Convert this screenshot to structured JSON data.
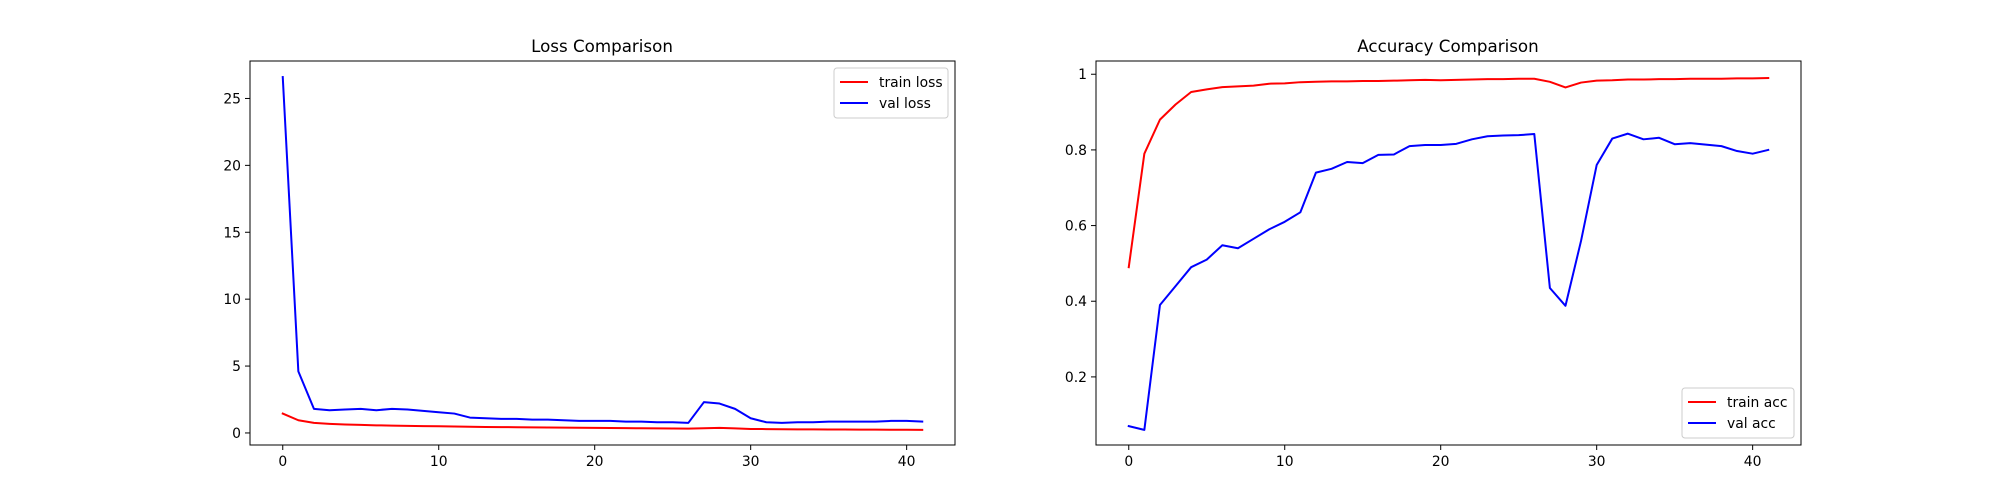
{
  "figure": {
    "background": "#ffffff"
  },
  "chart_data": [
    {
      "type": "line",
      "title": "Loss Comparison",
      "xlabel": "",
      "ylabel": "",
      "xlim": [
        -2.1,
        43.1
      ],
      "ylim": [
        -0.9,
        27.8
      ],
      "xticks": [
        0,
        10,
        20,
        30,
        40
      ],
      "yticks": [
        0,
        5,
        10,
        15,
        20,
        25
      ],
      "grid": false,
      "legend_position": "top-right",
      "x": [
        0,
        1,
        2,
        3,
        4,
        5,
        6,
        7,
        8,
        9,
        10,
        11,
        12,
        13,
        14,
        15,
        16,
        17,
        18,
        19,
        20,
        21,
        22,
        23,
        24,
        25,
        26,
        27,
        28,
        29,
        30,
        31,
        32,
        33,
        34,
        35,
        36,
        37,
        38,
        39,
        40,
        41
      ],
      "series": [
        {
          "name": "train loss",
          "color": "#ff0000",
          "values": [
            1.45,
            0.95,
            0.75,
            0.68,
            0.63,
            0.6,
            0.57,
            0.55,
            0.53,
            0.51,
            0.5,
            0.48,
            0.46,
            0.45,
            0.44,
            0.43,
            0.42,
            0.41,
            0.4,
            0.39,
            0.38,
            0.37,
            0.36,
            0.35,
            0.34,
            0.33,
            0.32,
            0.35,
            0.38,
            0.34,
            0.3,
            0.29,
            0.28,
            0.27,
            0.27,
            0.26,
            0.26,
            0.25,
            0.25,
            0.24,
            0.24,
            0.23
          ]
        },
        {
          "name": "val loss",
          "color": "#0000ff",
          "values": [
            26.6,
            4.6,
            1.8,
            1.7,
            1.75,
            1.8,
            1.7,
            1.8,
            1.75,
            1.65,
            1.55,
            1.45,
            1.15,
            1.1,
            1.05,
            1.05,
            1.0,
            1.0,
            0.95,
            0.9,
            0.9,
            0.9,
            0.85,
            0.85,
            0.8,
            0.8,
            0.75,
            2.3,
            2.2,
            1.8,
            1.1,
            0.8,
            0.75,
            0.8,
            0.8,
            0.85,
            0.85,
            0.85,
            0.85,
            0.9,
            0.9,
            0.85
          ]
        }
      ]
    },
    {
      "type": "line",
      "title": "Accuracy Comparison",
      "xlabel": "",
      "ylabel": "",
      "xlim": [
        -2.1,
        43.1
      ],
      "ylim": [
        0.02,
        1.035
      ],
      "xticks": [
        0,
        10,
        20,
        30,
        40
      ],
      "yticks": [
        0.2,
        0.4,
        0.6,
        0.8,
        1.0
      ],
      "grid": false,
      "legend_position": "lower-right",
      "x": [
        0,
        1,
        2,
        3,
        4,
        5,
        6,
        7,
        8,
        9,
        10,
        11,
        12,
        13,
        14,
        15,
        16,
        17,
        18,
        19,
        20,
        21,
        22,
        23,
        24,
        25,
        26,
        27,
        28,
        29,
        30,
        31,
        32,
        33,
        34,
        35,
        36,
        37,
        38,
        39,
        40,
        41
      ],
      "series": [
        {
          "name": "train acc",
          "color": "#ff0000",
          "values": [
            0.49,
            0.79,
            0.88,
            0.92,
            0.953,
            0.96,
            0.966,
            0.968,
            0.97,
            0.975,
            0.976,
            0.979,
            0.98,
            0.981,
            0.981,
            0.982,
            0.982,
            0.983,
            0.984,
            0.985,
            0.984,
            0.985,
            0.986,
            0.987,
            0.987,
            0.988,
            0.988,
            0.98,
            0.965,
            0.978,
            0.983,
            0.984,
            0.986,
            0.986,
            0.987,
            0.987,
            0.988,
            0.988,
            0.988,
            0.989,
            0.989,
            0.99
          ]
        },
        {
          "name": "val acc",
          "color": "#0000ff",
          "values": [
            0.07,
            0.06,
            0.39,
            0.44,
            0.49,
            0.51,
            0.548,
            0.54,
            0.565,
            0.59,
            0.61,
            0.635,
            0.74,
            0.75,
            0.768,
            0.765,
            0.787,
            0.788,
            0.81,
            0.813,
            0.813,
            0.816,
            0.828,
            0.836,
            0.838,
            0.839,
            0.842,
            0.435,
            0.388,
            0.56,
            0.76,
            0.83,
            0.843,
            0.828,
            0.832,
            0.815,
            0.818,
            0.814,
            0.81,
            0.797,
            0.79,
            0.8
          ]
        }
      ]
    }
  ]
}
